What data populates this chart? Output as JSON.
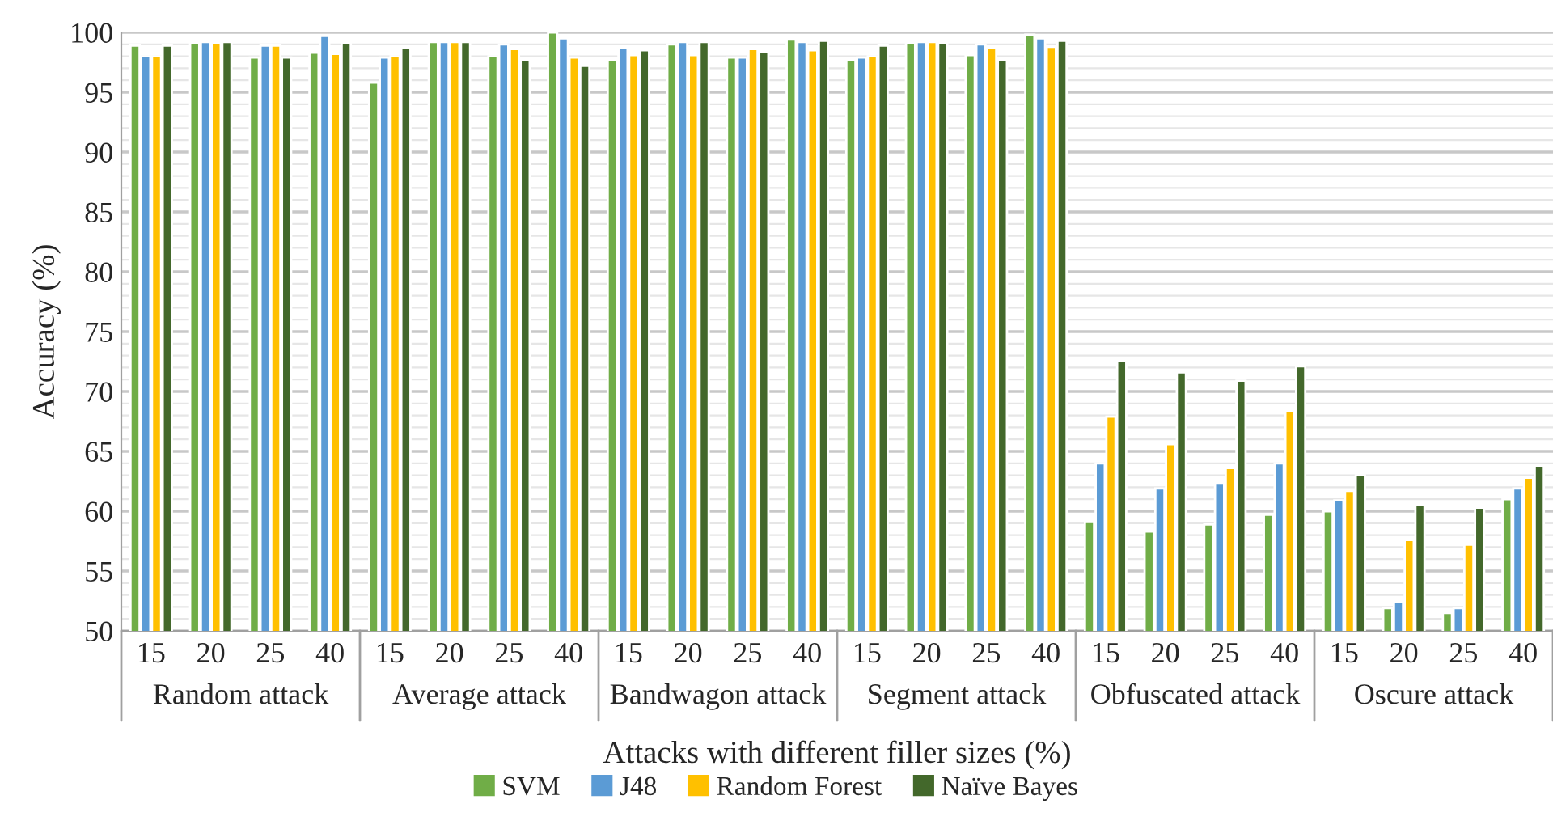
{
  "chart_data": {
    "type": "bar",
    "xlabel": "Attacks with different filler sizes (%)",
    "ylabel": "Accuracy (%)",
    "categories": [
      "15",
      "20",
      "25",
      "40",
      "15",
      "20",
      "25",
      "40",
      "15",
      "20",
      "25",
      "40",
      "15",
      "20",
      "25",
      "40",
      "15",
      "20",
      "25",
      "40",
      "15",
      "20",
      "25",
      "40"
    ],
    "annotations": [
      "Random attack",
      "Average attack",
      "Bandwagon attack",
      "Segment attack",
      "Obfuscated attack",
      "Oscure attack"
    ],
    "series": [
      {
        "name": "SVM",
        "color": "#70ad47",
        "values": [
          98.9,
          99.1,
          97.9,
          98.3,
          95.8,
          99.2,
          98.0,
          100,
          97.7,
          99.0,
          97.9,
          99.4,
          97.7,
          99.1,
          98.1,
          99.8,
          59.1,
          58.3,
          58.9,
          59.7,
          60.0,
          51.9,
          51.5,
          61.0
        ]
      },
      {
        "name": "J48",
        "color": "#5b9bd5",
        "values": [
          98.0,
          99.2,
          98.9,
          99.7,
          97.9,
          99.2,
          99.0,
          99.5,
          98.7,
          99.2,
          97.9,
          99.2,
          97.9,
          99.2,
          99.0,
          99.5,
          64.0,
          61.9,
          62.3,
          64.0,
          60.9,
          52.4,
          51.9,
          61.9
        ]
      },
      {
        "name": "Random Forest",
        "color": "#ffc000",
        "values": [
          98.0,
          99.1,
          98.9,
          98.2,
          98.0,
          99.2,
          98.6,
          97.9,
          98.1,
          98.1,
          98.6,
          98.5,
          98.0,
          99.2,
          98.7,
          98.8,
          67.9,
          65.6,
          63.6,
          68.4,
          61.7,
          57.6,
          57.2,
          62.8
        ]
      },
      {
        "name": "Naïve Bayes",
        "color": "#43682b",
        "values": [
          98.9,
          99.2,
          97.9,
          99.1,
          98.7,
          99.2,
          97.7,
          97.2,
          98.5,
          99.2,
          98.4,
          99.3,
          98.9,
          99.1,
          97.7,
          99.3,
          72.6,
          71.6,
          70.9,
          72.1,
          63.0,
          60.5,
          60.3,
          63.8
        ]
      }
    ],
    "ylim": [
      50,
      100
    ],
    "yticks": [
      50,
      55,
      60,
      65,
      70,
      75,
      80,
      85,
      90,
      95,
      100
    ],
    "grid": "y",
    "legend": "bottom"
  }
}
